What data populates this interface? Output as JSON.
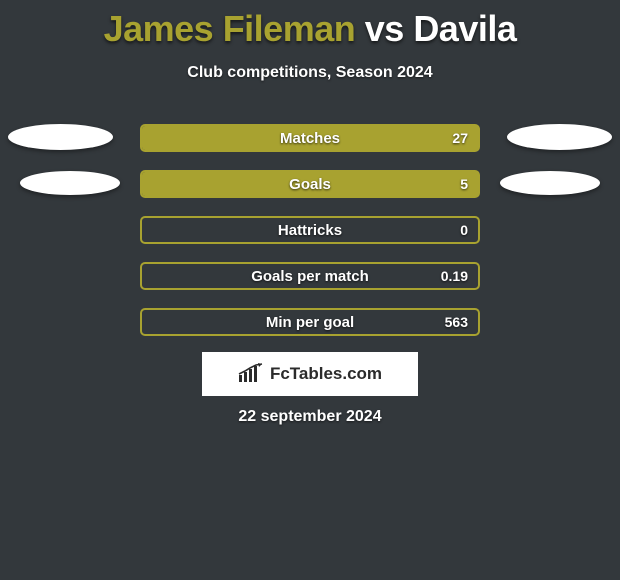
{
  "header": {
    "player1": "James Fileman",
    "vs": "vs",
    "player2": "Davila",
    "player1_color": "#a8a230",
    "vs_color": "#ffffff",
    "player2_color": "#ffffff",
    "subtitle": "Club competitions, Season 2024"
  },
  "chart": {
    "bar_fill_color": "#a8a230",
    "bar_border_color": "#a8a230",
    "track_bg": "transparent",
    "rows": [
      {
        "label": "Matches",
        "value": "27",
        "fill_pct": 100,
        "left_ellipse": "lg",
        "right_ellipse": "lg"
      },
      {
        "label": "Goals",
        "value": "5",
        "fill_pct": 100,
        "left_ellipse": "sm",
        "right_ellipse": "sm"
      },
      {
        "label": "Hattricks",
        "value": "0",
        "fill_pct": 0,
        "left_ellipse": null,
        "right_ellipse": null
      },
      {
        "label": "Goals per match",
        "value": "0.19",
        "fill_pct": 0,
        "left_ellipse": null,
        "right_ellipse": null
      },
      {
        "label": "Min per goal",
        "value": "563",
        "fill_pct": 0,
        "left_ellipse": null,
        "right_ellipse": null
      }
    ]
  },
  "footer": {
    "brand": "FcTables.com",
    "date": "22 september 2024"
  }
}
